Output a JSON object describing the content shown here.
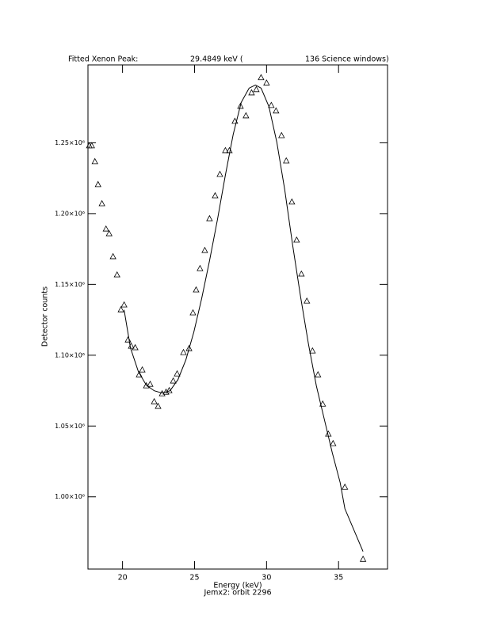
{
  "chart_data": {
    "type": "scatter",
    "title_parts": [
      "Fitted Xenon Peak:",
      "29.4849 keV (",
      "136 Science windows)"
    ],
    "x_label": "Energy (keV)",
    "footer": "Jemx2: orbit 2296",
    "y_label": "Detector counts",
    "xlim": [
      17.6,
      38.4
    ],
    "ylim": [
      949000,
      1305000
    ],
    "xticks": [
      20,
      25,
      30,
      35
    ],
    "yticks": [
      {
        "value": 1000000,
        "label": "1.00×10⁶"
      },
      {
        "value": 1050000,
        "label": "1.05×10⁶"
      },
      {
        "value": 1100000,
        "label": "1.10×10⁶"
      },
      {
        "value": 1150000,
        "label": "1.15×10⁶"
      },
      {
        "value": 1200000,
        "label": "1.20×10⁶"
      },
      {
        "value": 1250000,
        "label": "1.25×10⁶"
      }
    ],
    "series": [
      {
        "type": "scatter",
        "color": "#000000",
        "x": [
          17.69,
          17.86,
          18.08,
          18.3,
          18.57,
          18.85,
          19.07,
          19.34,
          19.62,
          19.89,
          20.11,
          20.38,
          20.6,
          20.88,
          21.15,
          21.37,
          21.65,
          21.92,
          22.2,
          22.47,
          22.75,
          23.02,
          23.24,
          23.52,
          23.79,
          24.23,
          24.62,
          24.89,
          25.11,
          25.38,
          25.71,
          26.04,
          26.43,
          26.76,
          27.14,
          27.42,
          27.8,
          28.19,
          28.57,
          28.96,
          29.29,
          29.62,
          30.0,
          30.33,
          30.66,
          31.04,
          31.37,
          31.76,
          32.09,
          32.42,
          32.8,
          33.19,
          33.57,
          33.9,
          34.29,
          34.62,
          35.44,
          36.7
        ],
        "values": [
          1247800,
          1247800,
          1236600,
          1220400,
          1206900,
          1189000,
          1185700,
          1169500,
          1156600,
          1132000,
          1135400,
          1110700,
          1106300,
          1105200,
          1086100,
          1089500,
          1078300,
          1079400,
          1067100,
          1063800,
          1072700,
          1073800,
          1074900,
          1081700,
          1086700,
          1101800,
          1104600,
          1129800,
          1146000,
          1161100,
          1173900,
          1196300,
          1212500,
          1227600,
          1244400,
          1244400,
          1265100,
          1275700,
          1269000,
          1285200,
          1287500,
          1295900,
          1292100,
          1276300,
          1272400,
          1255000,
          1237100,
          1208100,
          1181200,
          1157200,
          1138100,
          1102900,
          1086100,
          1065400,
          1044200,
          1037500,
          1006700,
          955800
        ]
      },
      {
        "type": "line",
        "color": "#000000",
        "x": [
          20.11,
          20.55,
          21.1,
          21.65,
          22.2,
          22.75,
          23.3,
          23.85,
          24.4,
          24.95,
          25.49,
          26.04,
          26.59,
          27.14,
          27.69,
          28.24,
          28.79,
          29.23,
          29.62,
          30.16,
          30.71,
          31.26,
          31.81,
          32.36,
          32.91,
          33.46,
          34.01,
          34.56,
          35.11,
          35.44,
          36.7
        ],
        "values": [
          1132000,
          1105200,
          1088400,
          1078900,
          1074900,
          1073300,
          1074900,
          1082800,
          1096800,
          1116300,
          1139800,
          1166700,
          1195700,
          1227100,
          1256200,
          1278500,
          1288600,
          1290800,
          1288600,
          1275700,
          1250600,
          1217000,
          1177900,
          1141500,
          1107900,
          1078300,
          1054800,
          1031300,
          1010100,
          991600,
          961400
        ]
      }
    ]
  }
}
